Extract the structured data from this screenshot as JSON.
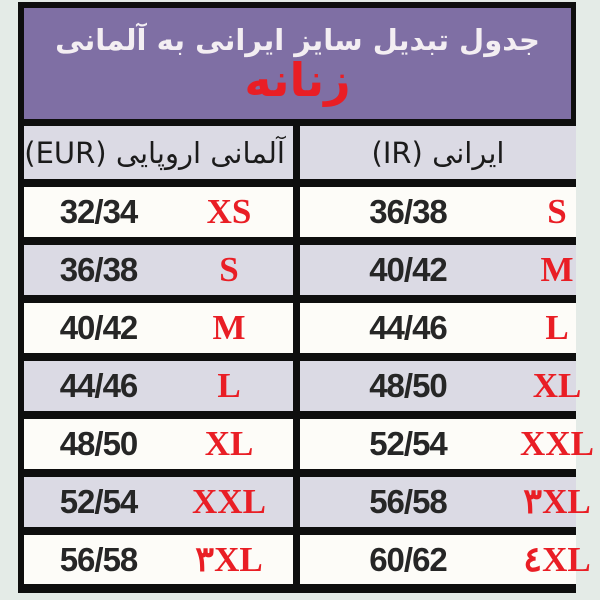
{
  "page": {
    "background_color": "#e4ebe7",
    "border_color": "#0e0e0e"
  },
  "colors": {
    "title_background_purple": "#7f6fa4",
    "row_shade_lavender": "#dbdae4",
    "row_plain_white": "#fdfcf8",
    "accent_red": "#e91e25",
    "text_dark": "#262626"
  },
  "title": {
    "line1": "جدول تبدیل سایز ایرانی به آلمانی",
    "line2": "زنانه"
  },
  "table": {
    "columns": [
      {
        "key": "eur",
        "label": "آلمانی اروپایی (EUR)"
      },
      {
        "key": "ir",
        "label": "ایرانی (IR)"
      }
    ],
    "rows": [
      {
        "eur_size": "32/34",
        "eur_label": "XS",
        "ir_size": "36/38",
        "ir_label": "S"
      },
      {
        "eur_size": "36/38",
        "eur_label": "S",
        "ir_size": "40/42",
        "ir_label": "M"
      },
      {
        "eur_size": "40/42",
        "eur_label": "M",
        "ir_size": "44/46",
        "ir_label": "L"
      },
      {
        "eur_size": "44/46",
        "eur_label": "L",
        "ir_size": "48/50",
        "ir_label": "XL"
      },
      {
        "eur_size": "48/50",
        "eur_label": "XL",
        "ir_size": "52/54",
        "ir_label": "XXL"
      },
      {
        "eur_size": "52/54",
        "eur_label": "XXL",
        "ir_size": "56/58",
        "ir_label": "۳XL"
      },
      {
        "eur_size": "56/58",
        "eur_label": "۳XL",
        "ir_size": "60/62",
        "ir_label": "٤XL"
      }
    ]
  }
}
